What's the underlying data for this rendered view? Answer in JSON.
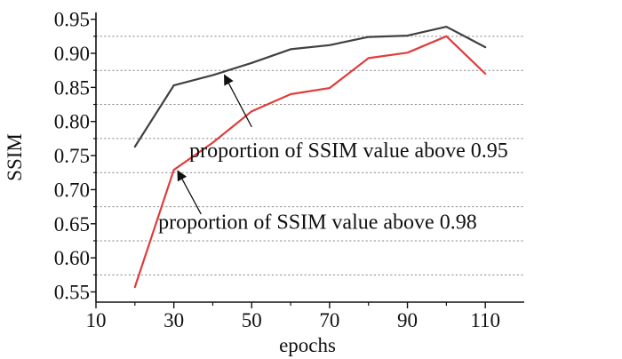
{
  "chart_data": {
    "type": "line",
    "title": "",
    "xlabel": "epochs",
    "ylabel": "SSIM",
    "xlim": [
      10,
      120
    ],
    "ylim": [
      0.535,
      0.96
    ],
    "x_ticks": [
      10,
      30,
      50,
      70,
      90,
      110
    ],
    "y_ticks": [
      0.55,
      0.6,
      0.65,
      0.7,
      0.75,
      0.8,
      0.85,
      0.9,
      0.95
    ],
    "y_tick_labels": [
      "0.55",
      "0.60",
      "0.65",
      "0.70",
      "0.75",
      "0.80",
      "0.85",
      "0.90",
      "0.95"
    ],
    "gridlines_y": [
      0.575,
      0.625,
      0.675,
      0.725,
      0.775,
      0.825,
      0.875,
      0.925
    ],
    "grid_style": "dotted horizontal",
    "series": [
      {
        "name": "proportion of SSIM value above 0.95",
        "color": "#404040",
        "x": [
          20,
          30,
          40,
          50,
          60,
          70,
          80,
          90,
          100,
          110
        ],
        "y": [
          0.763,
          0.853,
          0.868,
          0.886,
          0.906,
          0.912,
          0.924,
          0.926,
          0.939,
          0.909
        ]
      },
      {
        "name": "proportion of SSIM value above 0.98",
        "color": "#e03c3c",
        "x": [
          20,
          30,
          40,
          50,
          60,
          70,
          80,
          90,
          100,
          110
        ],
        "y": [
          0.557,
          0.729,
          0.769,
          0.815,
          0.84,
          0.849,
          0.893,
          0.901,
          0.925,
          0.87
        ]
      }
    ],
    "annotations": [
      {
        "text": "proportion of SSIM value above 0.95",
        "series": 0,
        "arrow_to": [
          43,
          0.868
        ],
        "arrow_from": [
          50,
          0.792
        ],
        "text_at": [
          34,
          0.7475
        ]
      },
      {
        "text": "proportion of SSIM value above 0.98",
        "series": 1,
        "arrow_to": [
          31,
          0.7275
        ],
        "arrow_from": [
          37,
          0.664
        ],
        "text_at": [
          26,
          0.6425
        ]
      }
    ]
  }
}
